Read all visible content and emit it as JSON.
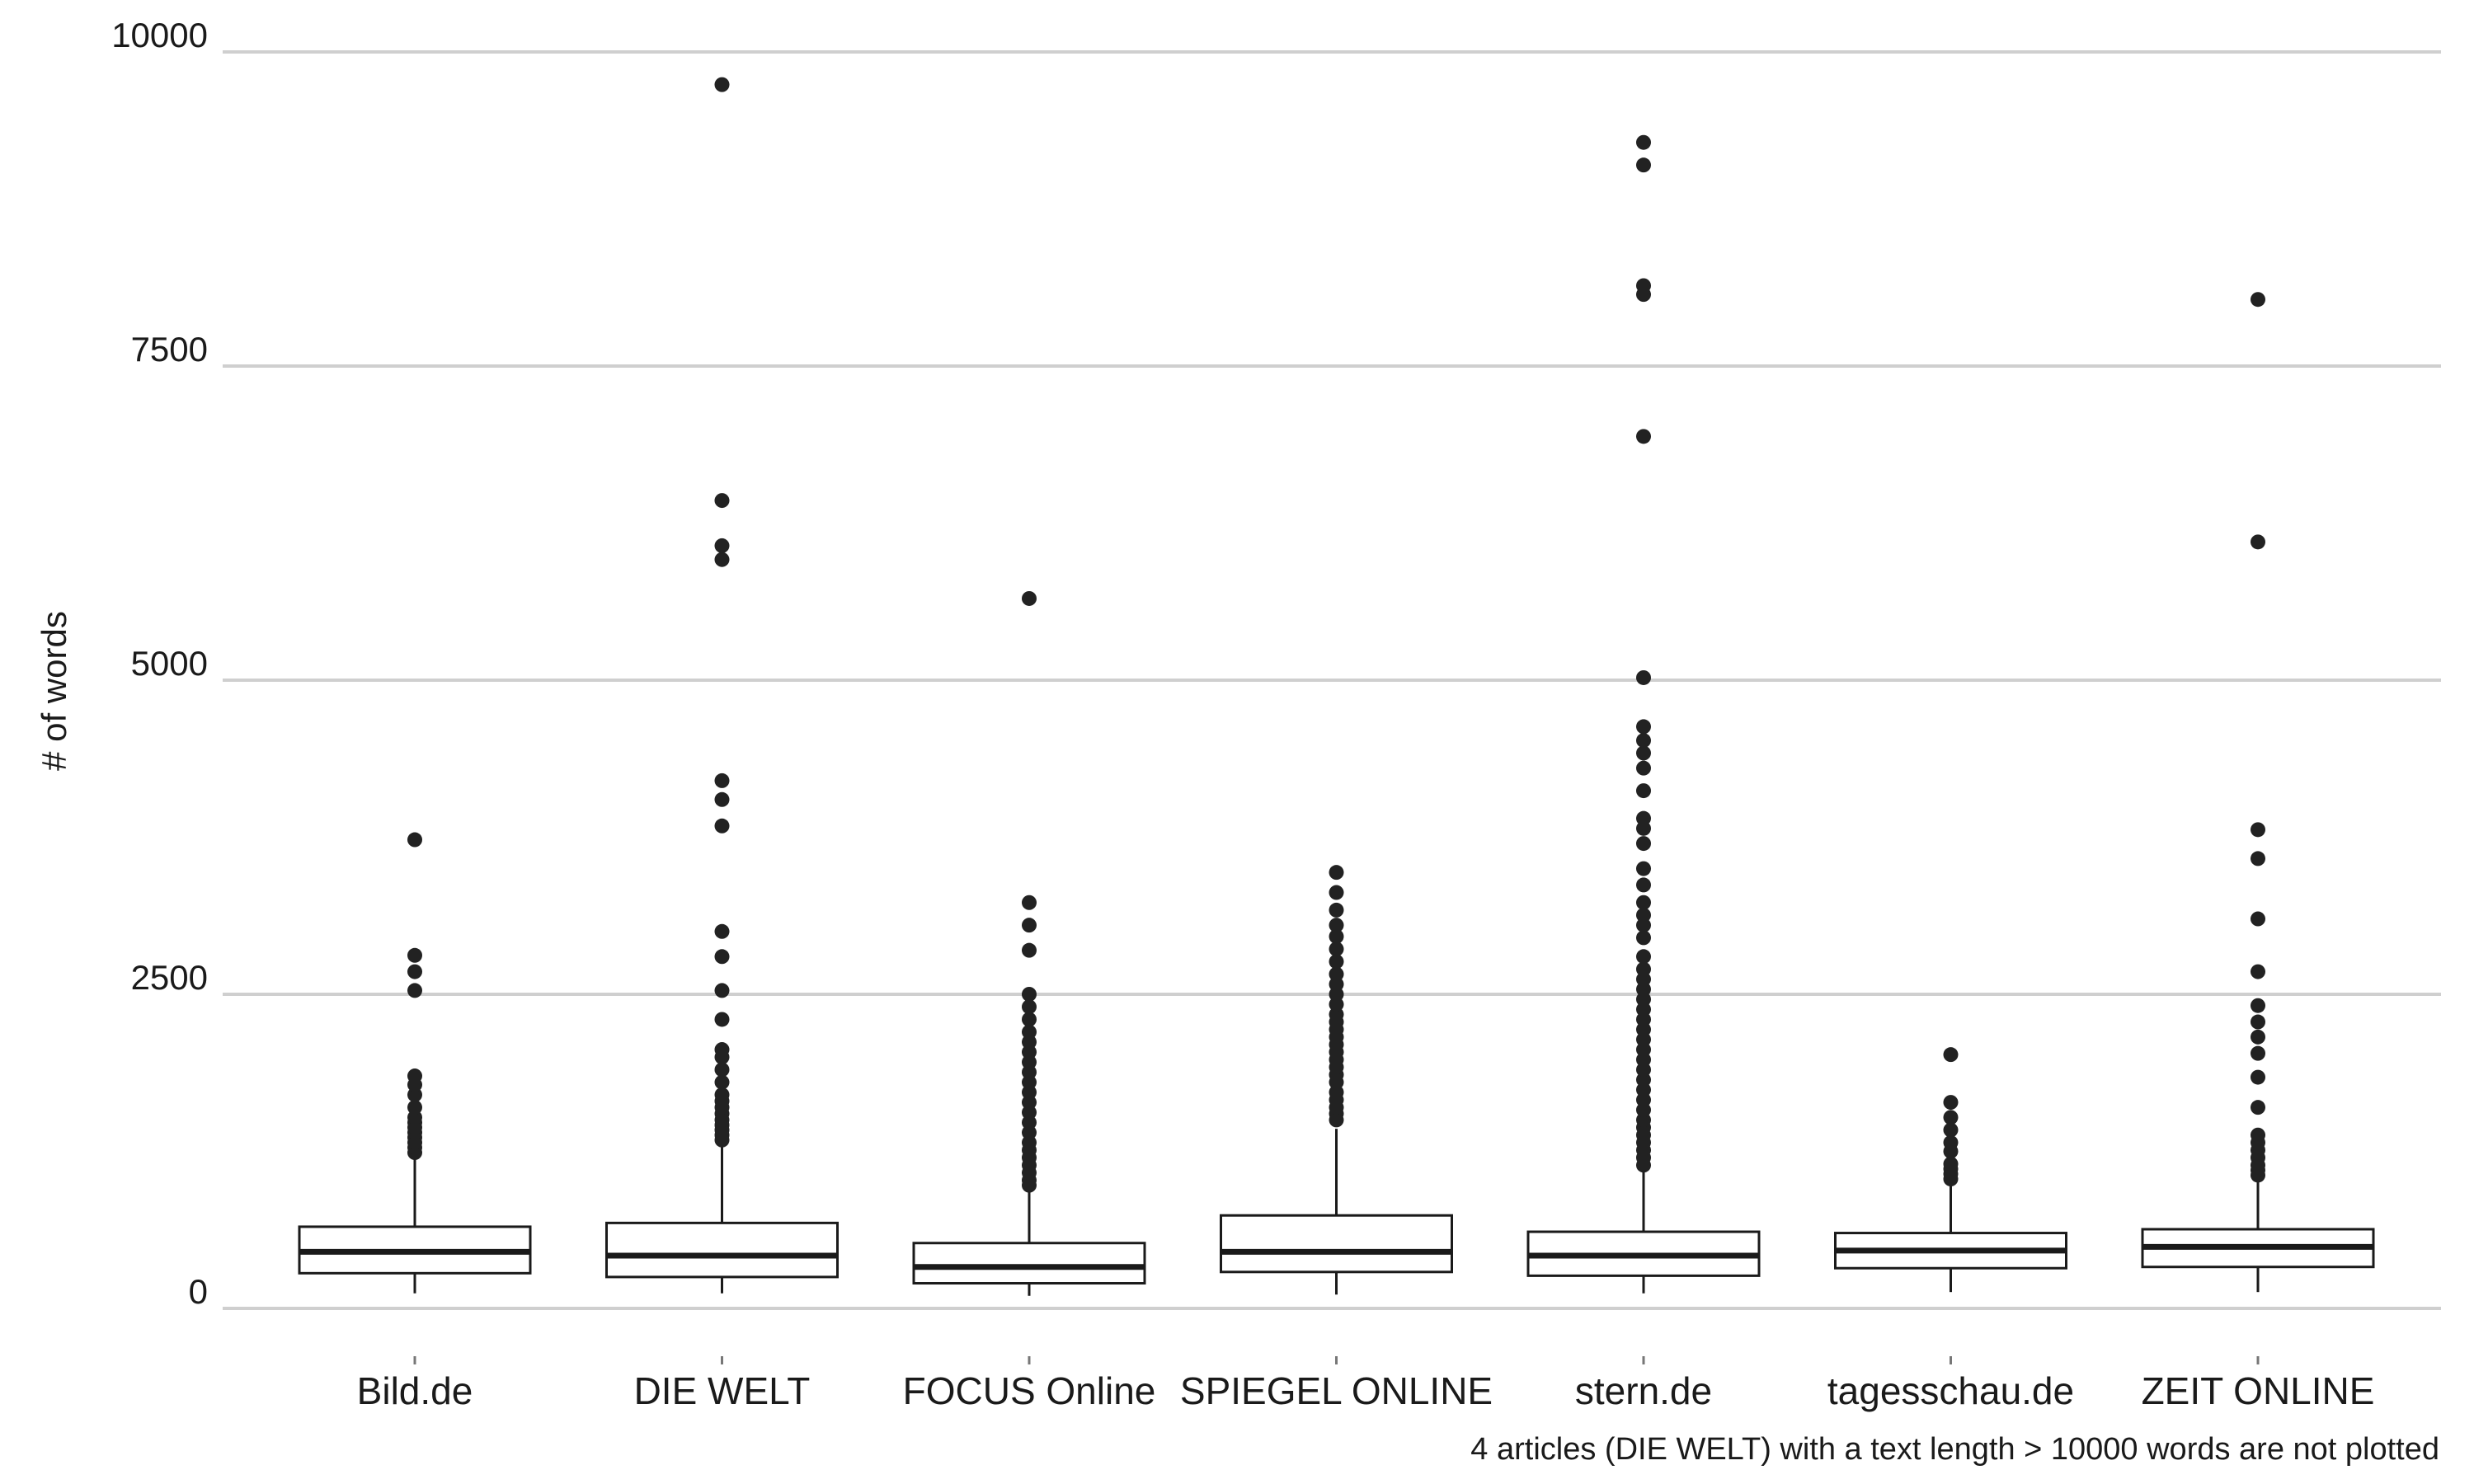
{
  "chart_data": {
    "type": "boxplot",
    "ylabel": "# of words",
    "xlabel": "",
    "ylim": [
      0,
      10000
    ],
    "yticks": [
      0,
      2500,
      5000,
      7500,
      10000
    ],
    "grid": "horizontal",
    "categories": [
      "Bild.de",
      "DIE WELT",
      "FOCUS Online",
      "SPIEGEL ONLINE",
      "stern.de",
      "tagesschau.de",
      "ZEIT ONLINE"
    ],
    "boxes": [
      {
        "category": "Bild.de",
        "q1": 280,
        "median": 450,
        "q3": 650,
        "whisker_low": 120,
        "whisker_high": 1200,
        "outliers": [
          1240,
          1280,
          1320,
          1360,
          1400,
          1440,
          1480,
          1520,
          1600,
          1700,
          1780,
          1850,
          2530,
          2680,
          2810,
          3730
        ]
      },
      {
        "category": "DIE WELT",
        "q1": 250,
        "median": 420,
        "q3": 680,
        "whisker_low": 120,
        "whisker_high": 1320,
        "outliers": [
          1340,
          1380,
          1420,
          1460,
          1500,
          1550,
          1600,
          1650,
          1700,
          1800,
          1900,
          2000,
          2060,
          2300,
          2530,
          2800,
          3000,
          3840,
          4050,
          4200,
          5960,
          6070,
          6430,
          9740
        ]
      },
      {
        "category": "FOCUS Online",
        "q1": 200,
        "median": 330,
        "q3": 520,
        "whisker_low": 100,
        "whisker_high": 960,
        "outliers": [
          980,
          1020,
          1080,
          1140,
          1200,
          1260,
          1320,
          1400,
          1480,
          1560,
          1640,
          1720,
          1800,
          1880,
          1960,
          2040,
          2120,
          2200,
          2300,
          2400,
          2500,
          2850,
          3050,
          3230,
          5650
        ]
      },
      {
        "category": "SPIEGEL ONLINE",
        "q1": 290,
        "median": 450,
        "q3": 740,
        "whisker_low": 110,
        "whisker_high": 1430,
        "outliers": [
          1500,
          1550,
          1600,
          1660,
          1720,
          1800,
          1860,
          1920,
          1980,
          2040,
          2100,
          2160,
          2220,
          2280,
          2340,
          2420,
          2500,
          2580,
          2660,
          2760,
          2860,
          2960,
          3050,
          3170,
          3310,
          3470
        ]
      },
      {
        "category": "stern.de",
        "q1": 260,
        "median": 420,
        "q3": 610,
        "whisker_low": 120,
        "whisker_high": 1100,
        "outliers": [
          1140,
          1200,
          1260,
          1320,
          1380,
          1440,
          1500,
          1580,
          1660,
          1740,
          1820,
          1900,
          1980,
          2060,
          2140,
          2220,
          2300,
          2380,
          2460,
          2540,
          2620,
          2700,
          2800,
          2950,
          3050,
          3130,
          3230,
          3370,
          3500,
          3700,
          3820,
          3900,
          4120,
          4300,
          4420,
          4520,
          4630,
          5020,
          6940,
          8070,
          8140,
          9100,
          9280
        ]
      },
      {
        "category": "tagesschau.de",
        "q1": 320,
        "median": 460,
        "q3": 600,
        "whisker_low": 130,
        "whisker_high": 990,
        "outliers": [
          1030,
          1070,
          1110,
          1150,
          1250,
          1320,
          1420,
          1520,
          1640,
          2020
        ]
      },
      {
        "category": "ZEIT ONLINE",
        "q1": 330,
        "median": 490,
        "q3": 630,
        "whisker_low": 130,
        "whisker_high": 1040,
        "outliers": [
          1060,
          1100,
          1140,
          1200,
          1260,
          1320,
          1380,
          1600,
          1840,
          2030,
          2160,
          2280,
          2410,
          2680,
          3100,
          3580,
          3810,
          6100,
          8030
        ]
      }
    ],
    "annotation": "4 articles (DIE WELT) with a text length > 10000 words are not plotted"
  }
}
